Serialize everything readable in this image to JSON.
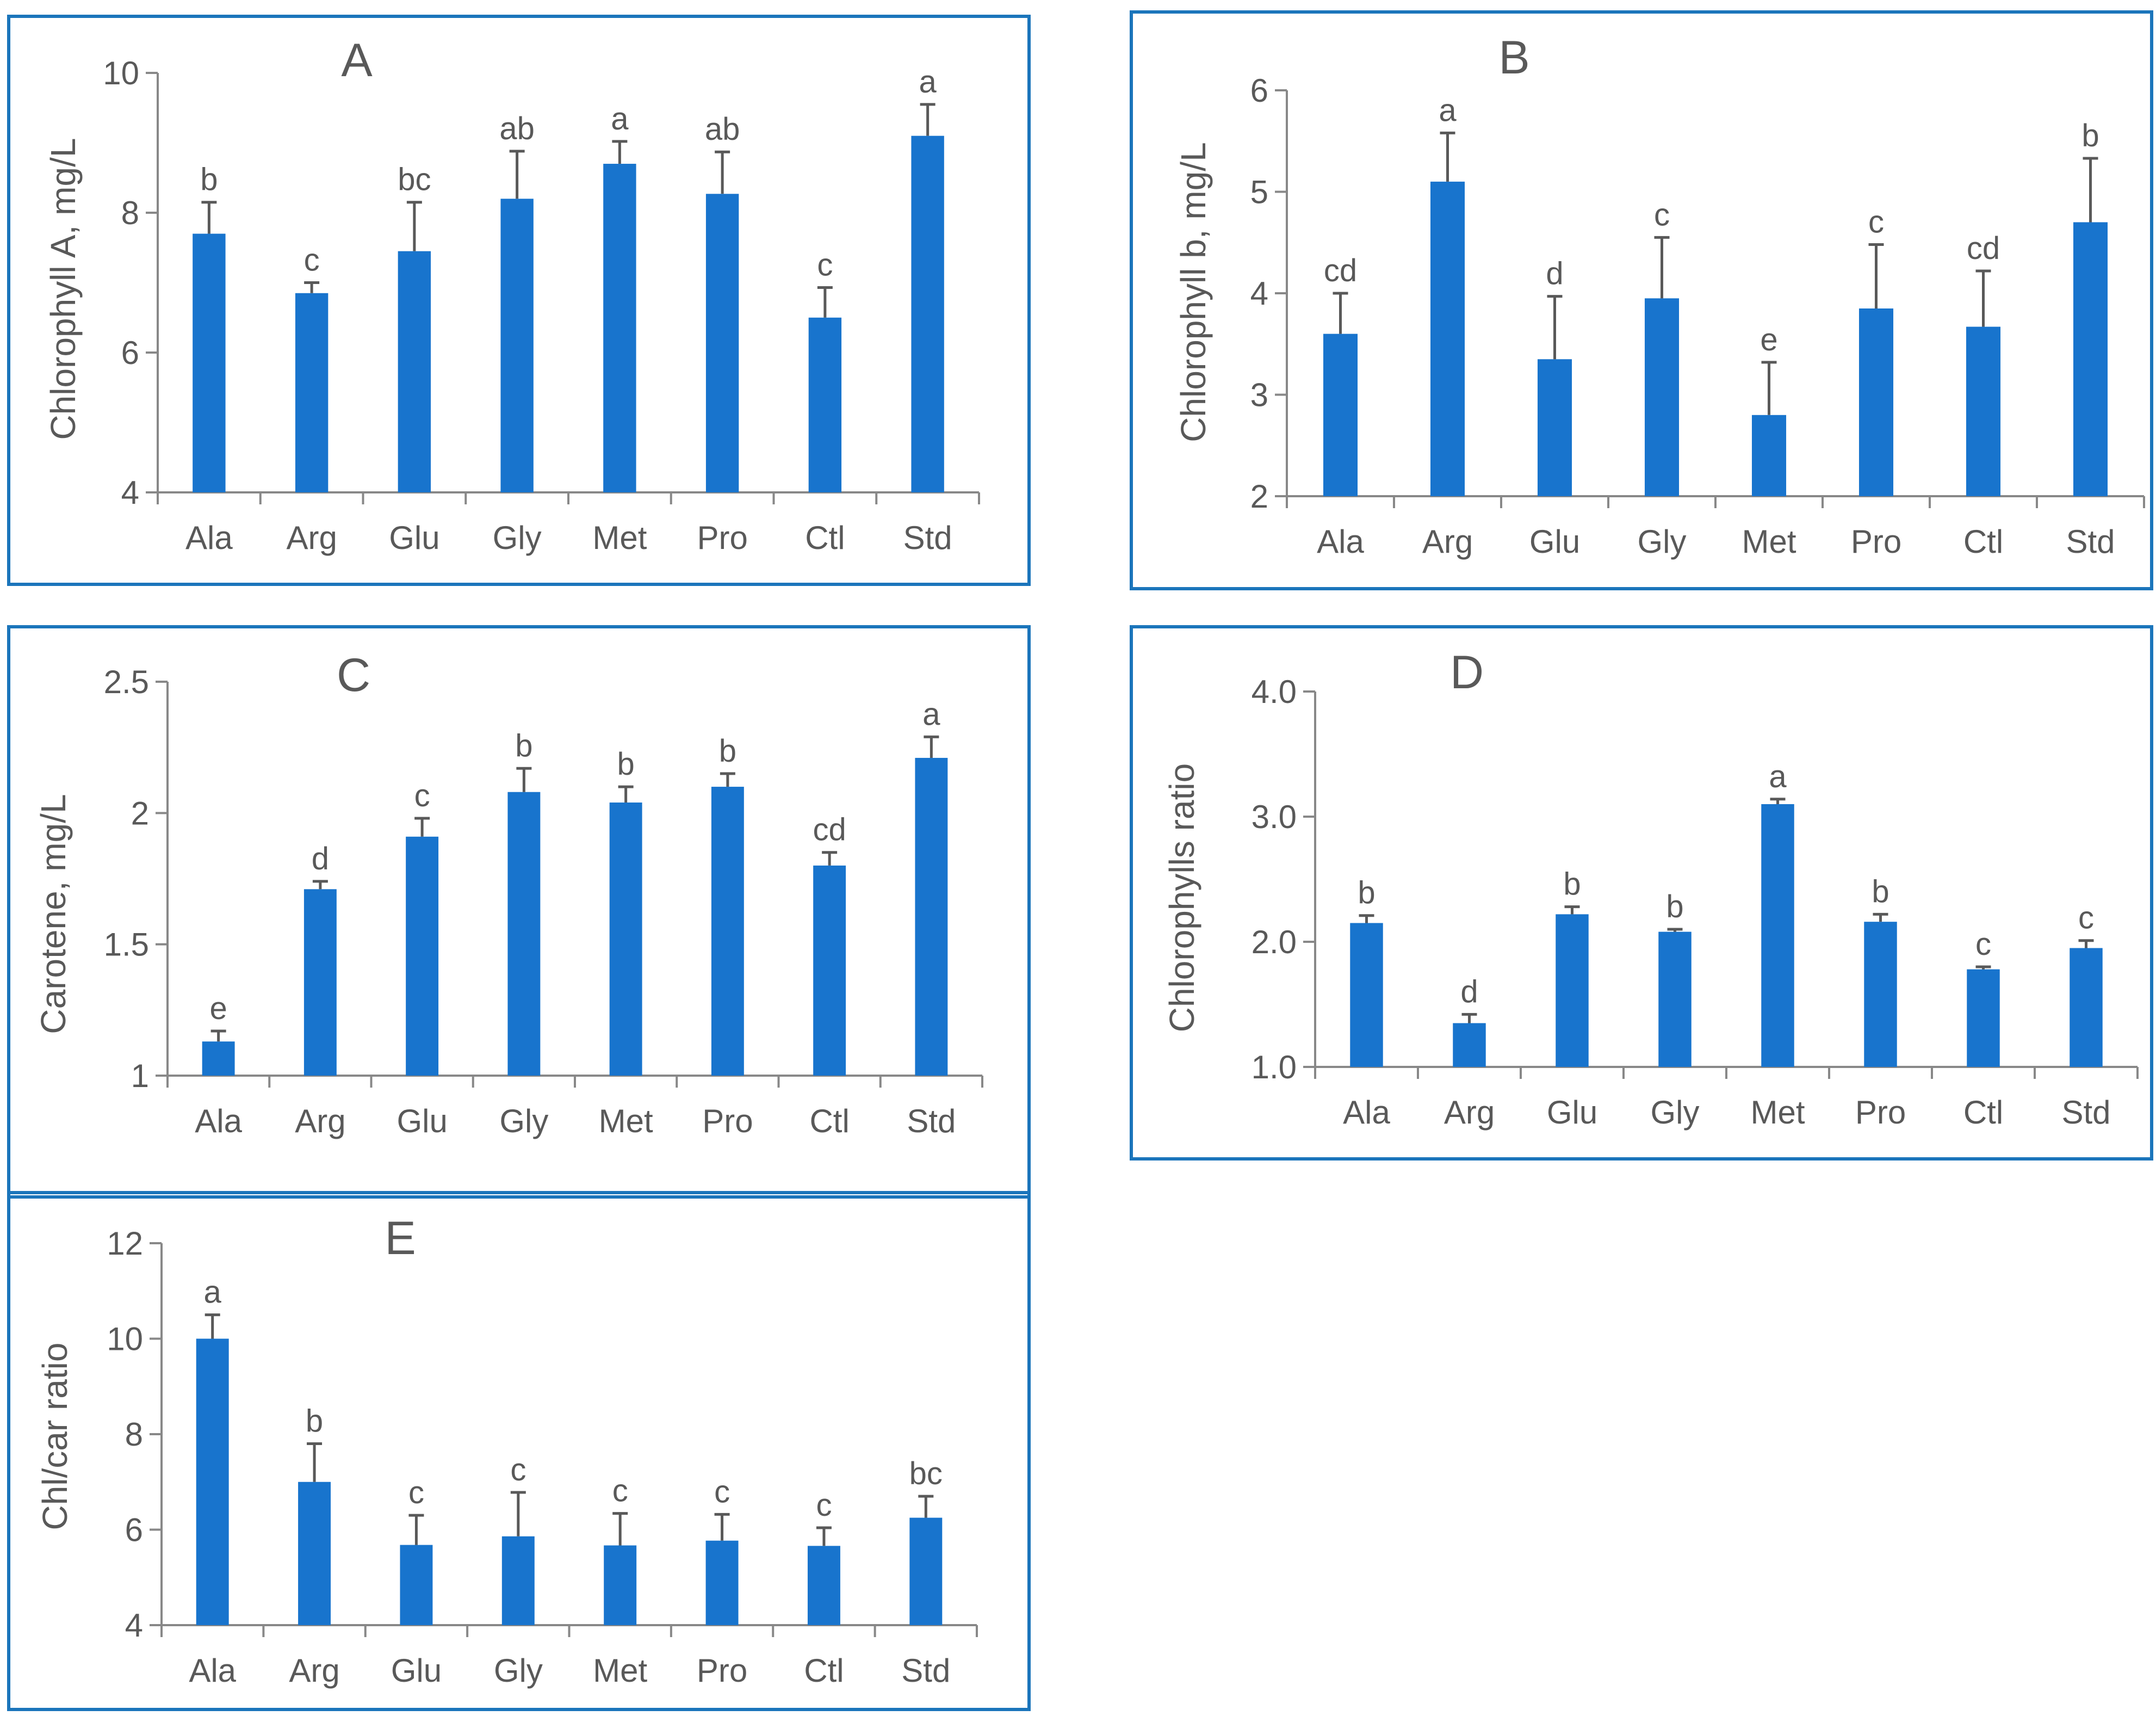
{
  "colors": {
    "bar": "#1874CD",
    "frame": "#1B75BB",
    "text": "#595959",
    "axis": "#888888",
    "error": "#595959"
  },
  "chart_data": [
    {
      "type": "bar",
      "panel": "A",
      "title": "A",
      "ylabel": "Chlorophyll A, mg/L",
      "xlabel": "",
      "ylim": [
        4,
        10
      ],
      "yticks": [
        "4",
        "6",
        "8",
        "10"
      ],
      "categories": [
        "Ala",
        "Arg",
        "Glu",
        "Gly",
        "Met",
        "Pro",
        "Ctl",
        "Std"
      ],
      "values": [
        7.7,
        6.85,
        7.45,
        8.2,
        8.7,
        8.27,
        6.5,
        9.1
      ],
      "errors": [
        0.45,
        0.15,
        0.7,
        0.68,
        0.32,
        0.6,
        0.43,
        0.45
      ],
      "letters": [
        "b",
        "c",
        "bc",
        "ab",
        "a",
        "ab",
        "c",
        "a"
      ]
    },
    {
      "type": "bar",
      "panel": "B",
      "title": "B",
      "ylabel": "Chlorophyll b, mg/L",
      "xlabel": "",
      "ylim": [
        2,
        6
      ],
      "yticks": [
        "2",
        "3",
        "4",
        "5",
        "6"
      ],
      "categories": [
        "Ala",
        "Arg",
        "Glu",
        "Gly",
        "Met",
        "Pro",
        "Ctl",
        "Std"
      ],
      "values": [
        3.6,
        5.1,
        3.35,
        3.95,
        2.8,
        3.85,
        3.67,
        4.7
      ],
      "errors": [
        0.4,
        0.48,
        0.62,
        0.6,
        0.52,
        0.63,
        0.55,
        0.63
      ],
      "letters": [
        "cd",
        "a",
        "d",
        "c",
        "e",
        "c",
        "cd",
        "b"
      ]
    },
    {
      "type": "bar",
      "panel": "C",
      "title": "C",
      "ylabel": "Carotene, mg/L",
      "xlabel": "",
      "ylim": [
        1,
        2.5
      ],
      "yticks": [
        "1",
        "1.5",
        "2",
        "2.5"
      ],
      "categories": [
        "Ala",
        "Arg",
        "Glu",
        "Gly",
        "Met",
        "Pro",
        "Ctl",
        "Std"
      ],
      "values": [
        1.13,
        1.71,
        1.91,
        2.08,
        2.04,
        2.1,
        1.8,
        2.21
      ],
      "errors": [
        0.04,
        0.03,
        0.07,
        0.09,
        0.06,
        0.05,
        0.05,
        0.08
      ],
      "letters": [
        "e",
        "d",
        "c",
        "b",
        "b",
        "b",
        "cd",
        "a"
      ]
    },
    {
      "type": "bar",
      "panel": "D",
      "title": "D",
      "ylabel": "Chlorophylls ratio",
      "xlabel": "",
      "ylim": [
        1,
        4
      ],
      "yticks": [
        "1.0",
        "2.0",
        "3.0",
        "4.0"
      ],
      "categories": [
        "Ala",
        "Arg",
        "Glu",
        "Gly",
        "Met",
        "Pro",
        "Ctl",
        "Std"
      ],
      "values": [
        2.15,
        1.35,
        2.22,
        2.08,
        3.1,
        2.16,
        1.78,
        1.95
      ],
      "errors": [
        0.06,
        0.07,
        0.06,
        0.02,
        0.04,
        0.06,
        0.02,
        0.06
      ],
      "letters": [
        "b",
        "d",
        "b",
        "b",
        "a",
        "b",
        "c",
        "c"
      ]
    },
    {
      "type": "bar",
      "panel": "E",
      "title": "E",
      "ylabel": "Chl/car ratio",
      "xlabel": "",
      "ylim": [
        4,
        12
      ],
      "yticks": [
        "4",
        "6",
        "8",
        "10",
        "12"
      ],
      "categories": [
        "Ala",
        "Arg",
        "Glu",
        "Gly",
        "Met",
        "Pro",
        "Ctl",
        "Std"
      ],
      "values": [
        10.0,
        7.0,
        5.68,
        5.86,
        5.67,
        5.77,
        5.66,
        6.25
      ],
      "errors": [
        0.5,
        0.8,
        0.62,
        0.92,
        0.67,
        0.55,
        0.38,
        0.45
      ],
      "letters": [
        "a",
        "b",
        "c",
        "c",
        "c",
        "c",
        "c",
        "bc"
      ]
    }
  ]
}
